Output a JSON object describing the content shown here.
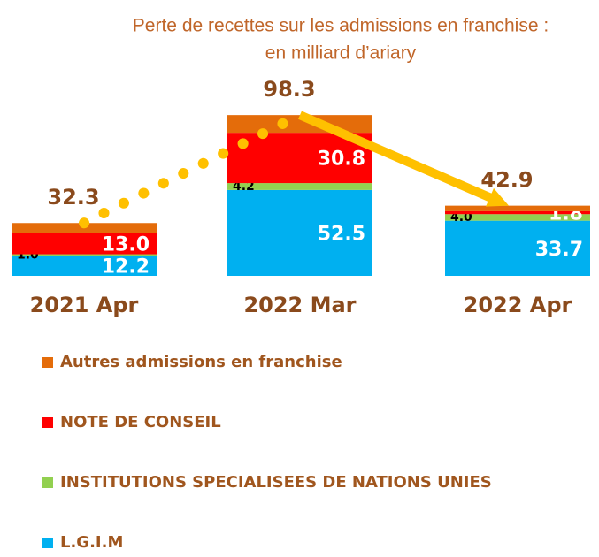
{
  "chart_data": {
    "type": "stacked_bar",
    "title": "Perte de recettes sur les admissions en franchise :",
    "subtitle": "en milliard d’ariary",
    "categories": [
      "2021 Apr",
      "2022 Mar",
      "2022 Apr"
    ],
    "series": [
      {
        "name": "L.G.I.M",
        "color": "#00b0f0",
        "values": [
          12.2,
          52.5,
          33.7
        ],
        "value_labels": [
          "12.2",
          "52.5",
          "33.7"
        ]
      },
      {
        "name": "INSTITUTIONS SPECIALISEES DE NATIONS UNIES",
        "color": "#92d050",
        "values": [
          1.0,
          4.2,
          4.0
        ],
        "value_labels": [
          "1.0",
          "4.2",
          "4.0"
        ]
      },
      {
        "name": "NOTE DE CONSEIL",
        "color": "#ff0000",
        "values": [
          13.0,
          30.8,
          1.8
        ],
        "value_labels": [
          "13.0",
          "30.8",
          "1.8"
        ]
      },
      {
        "name": "Autres admissions en franchise",
        "color": "#e46c0a",
        "values": [
          6.1,
          10.8,
          3.4
        ]
      }
    ],
    "totals": [
      32.3,
      98.3,
      42.9
    ],
    "trend_color": "#ffc000"
  }
}
